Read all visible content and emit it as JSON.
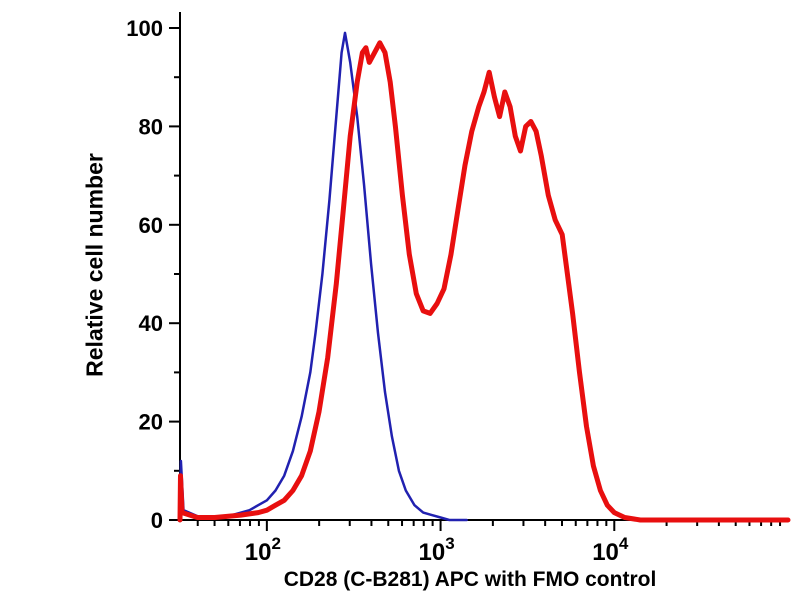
{
  "chart_data": {
    "type": "line",
    "title": "",
    "xlabel": "CD28 (C-B281) APC with FMO control",
    "ylabel": "Relative cell number",
    "x_scale": "log10",
    "x_range_log10": [
      1.5,
      5.0
    ],
    "ylim": [
      0,
      100
    ],
    "y_ticks": [
      0,
      20,
      40,
      60,
      80,
      100
    ],
    "y_minor_ticks": [
      10,
      30,
      50,
      70,
      90
    ],
    "x_major_ticks": [
      {
        "base": "10",
        "exp": "2"
      },
      {
        "base": "10",
        "exp": "3"
      },
      {
        "base": "10",
        "exp": "4"
      }
    ],
    "axis_color": "#000000",
    "background_color": "#ffffff",
    "grid": false,
    "legend": "none",
    "series": [
      {
        "name": "FMO control",
        "slug": "fmo-control-curve",
        "color": "#2121b0",
        "width": 2.5,
        "points_log10x_y": [
          [
            1.5,
            0
          ],
          [
            1.505,
            12
          ],
          [
            1.52,
            2
          ],
          [
            1.6,
            0.8
          ],
          [
            1.7,
            0.6
          ],
          [
            1.8,
            1
          ],
          [
            1.9,
            2
          ],
          [
            1.95,
            3
          ],
          [
            2.0,
            4
          ],
          [
            2.05,
            6
          ],
          [
            2.1,
            9
          ],
          [
            2.15,
            14
          ],
          [
            2.2,
            21
          ],
          [
            2.25,
            30
          ],
          [
            2.28,
            38
          ],
          [
            2.32,
            50
          ],
          [
            2.36,
            65
          ],
          [
            2.4,
            82
          ],
          [
            2.43,
            95
          ],
          [
            2.45,
            99
          ],
          [
            2.48,
            93
          ],
          [
            2.52,
            82
          ],
          [
            2.56,
            68
          ],
          [
            2.6,
            52
          ],
          [
            2.64,
            38
          ],
          [
            2.68,
            26
          ],
          [
            2.72,
            17
          ],
          [
            2.76,
            10
          ],
          [
            2.8,
            6
          ],
          [
            2.85,
            3
          ],
          [
            2.9,
            1.5
          ],
          [
            2.95,
            1
          ],
          [
            3.0,
            0.5
          ],
          [
            3.05,
            0
          ],
          [
            3.15,
            0
          ]
        ]
      },
      {
        "name": "CD28 (C-B281) APC",
        "slug": "cd28-apc-curve",
        "color": "#e80f0f",
        "width": 5,
        "points_log10x_y": [
          [
            1.5,
            0
          ],
          [
            1.503,
            9
          ],
          [
            1.512,
            1.5
          ],
          [
            1.6,
            0.5
          ],
          [
            1.7,
            0.5
          ],
          [
            1.85,
            1
          ],
          [
            1.95,
            1.5
          ],
          [
            2.0,
            2
          ],
          [
            2.05,
            3
          ],
          [
            2.1,
            4
          ],
          [
            2.15,
            6
          ],
          [
            2.2,
            9
          ],
          [
            2.25,
            14
          ],
          [
            2.3,
            22
          ],
          [
            2.35,
            33
          ],
          [
            2.4,
            48
          ],
          [
            2.44,
            63
          ],
          [
            2.48,
            78
          ],
          [
            2.52,
            89
          ],
          [
            2.55,
            95
          ],
          [
            2.57,
            96
          ],
          [
            2.59,
            93
          ],
          [
            2.62,
            95
          ],
          [
            2.65,
            97
          ],
          [
            2.68,
            95
          ],
          [
            2.71,
            89
          ],
          [
            2.74,
            80
          ],
          [
            2.78,
            66
          ],
          [
            2.82,
            54
          ],
          [
            2.86,
            46
          ],
          [
            2.9,
            42.5
          ],
          [
            2.94,
            42
          ],
          [
            2.98,
            44
          ],
          [
            3.02,
            47
          ],
          [
            3.06,
            54
          ],
          [
            3.1,
            63
          ],
          [
            3.14,
            72
          ],
          [
            3.18,
            79
          ],
          [
            3.22,
            84
          ],
          [
            3.25,
            87
          ],
          [
            3.28,
            91
          ],
          [
            3.31,
            86
          ],
          [
            3.34,
            82
          ],
          [
            3.37,
            87
          ],
          [
            3.4,
            84
          ],
          [
            3.43,
            78
          ],
          [
            3.46,
            75
          ],
          [
            3.49,
            80
          ],
          [
            3.52,
            81
          ],
          [
            3.55,
            79
          ],
          [
            3.58,
            74
          ],
          [
            3.62,
            66
          ],
          [
            3.66,
            61
          ],
          [
            3.7,
            58
          ],
          [
            3.73,
            50
          ],
          [
            3.76,
            42
          ],
          [
            3.8,
            30
          ],
          [
            3.84,
            19
          ],
          [
            3.88,
            11
          ],
          [
            3.92,
            6
          ],
          [
            3.96,
            3
          ],
          [
            4.0,
            1.5
          ],
          [
            4.06,
            0.5
          ],
          [
            4.15,
            0
          ],
          [
            4.5,
            0
          ],
          [
            5.0,
            0
          ]
        ]
      }
    ]
  }
}
